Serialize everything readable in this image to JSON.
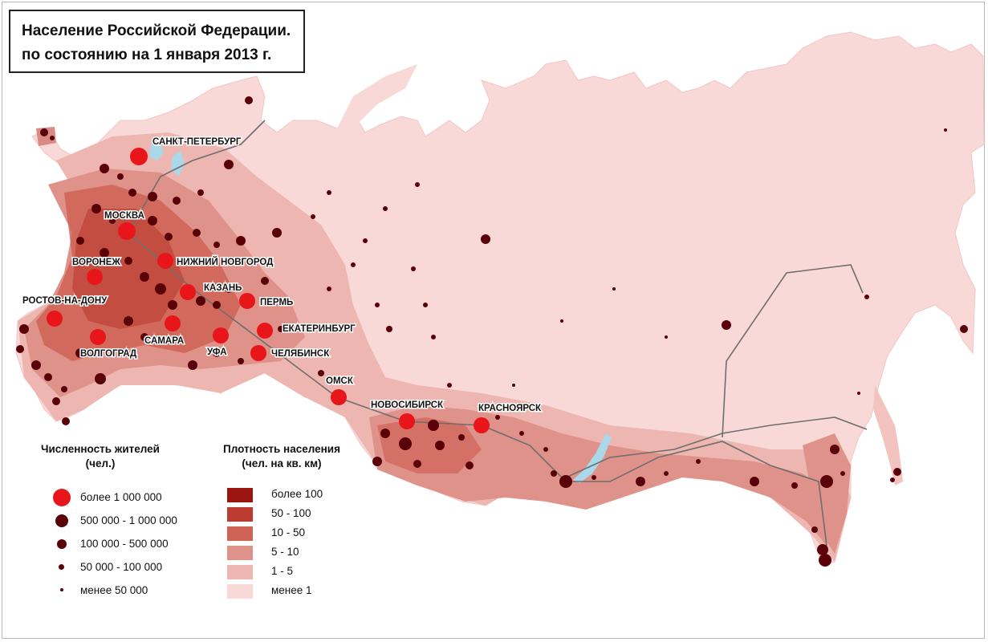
{
  "title": {
    "line1": "Население Российской Федерации.",
    "line2": "по состоянию на 1 января 2013 г."
  },
  "legend_population": {
    "heading_line1": "Численность жителей",
    "heading_line2": "(чел.)",
    "items": [
      {
        "label": "более 1 000 000",
        "color": "#e8161b"
      },
      {
        "label": "500 000 - 1 000 000",
        "color": "#5a0008"
      },
      {
        "label": "100 000 - 500 000",
        "color": "#5a0008"
      },
      {
        "label": "50 000 - 100 000",
        "color": "#5a0008"
      },
      {
        "label": "менее 50 000",
        "color": "#5a0008"
      }
    ]
  },
  "legend_density": {
    "heading_line1": "Плотность населения",
    "heading_line2": "(чел. на кв. км)",
    "items": [
      {
        "label": "более 100",
        "color": "#9b1510"
      },
      {
        "label": "50 - 100",
        "color": "#bb3b2e"
      },
      {
        "label": "10 - 50",
        "color": "#cf6356"
      },
      {
        "label": "5 - 10",
        "color": "#df9289"
      },
      {
        "label": "1 - 5",
        "color": "#eeb6b1"
      },
      {
        "label": "менее 1",
        "color": "#f9d9d8"
      }
    ]
  },
  "cities": [
    {
      "name": "САНКТ-ПЕТЕРБУРГ"
    },
    {
      "name": "МОСКВА"
    },
    {
      "name": "НИЖНИЙ НОВГОРОД"
    },
    {
      "name": "ВОРОНЕЖ"
    },
    {
      "name": "КАЗАНЬ"
    },
    {
      "name": "ПЕРМЬ"
    },
    {
      "name": "РОСТОВ-НА-ДОНУ"
    },
    {
      "name": "ЕКАТЕРИНБУРГ"
    },
    {
      "name": "САМАРА"
    },
    {
      "name": "ВОЛГОГРАД"
    },
    {
      "name": "УФА"
    },
    {
      "name": "ЧЕЛЯБИНСК"
    },
    {
      "name": "ОМСК"
    },
    {
      "name": "НОВОСИБИРСК"
    },
    {
      "name": "КРАСНОЯРСК"
    }
  ],
  "colors": {
    "land_base": "#f9d9d8",
    "water": "#a9d8ea",
    "railway": "#6e6e6e",
    "million_city": "#e8161b",
    "small_city": "#5a0008"
  }
}
